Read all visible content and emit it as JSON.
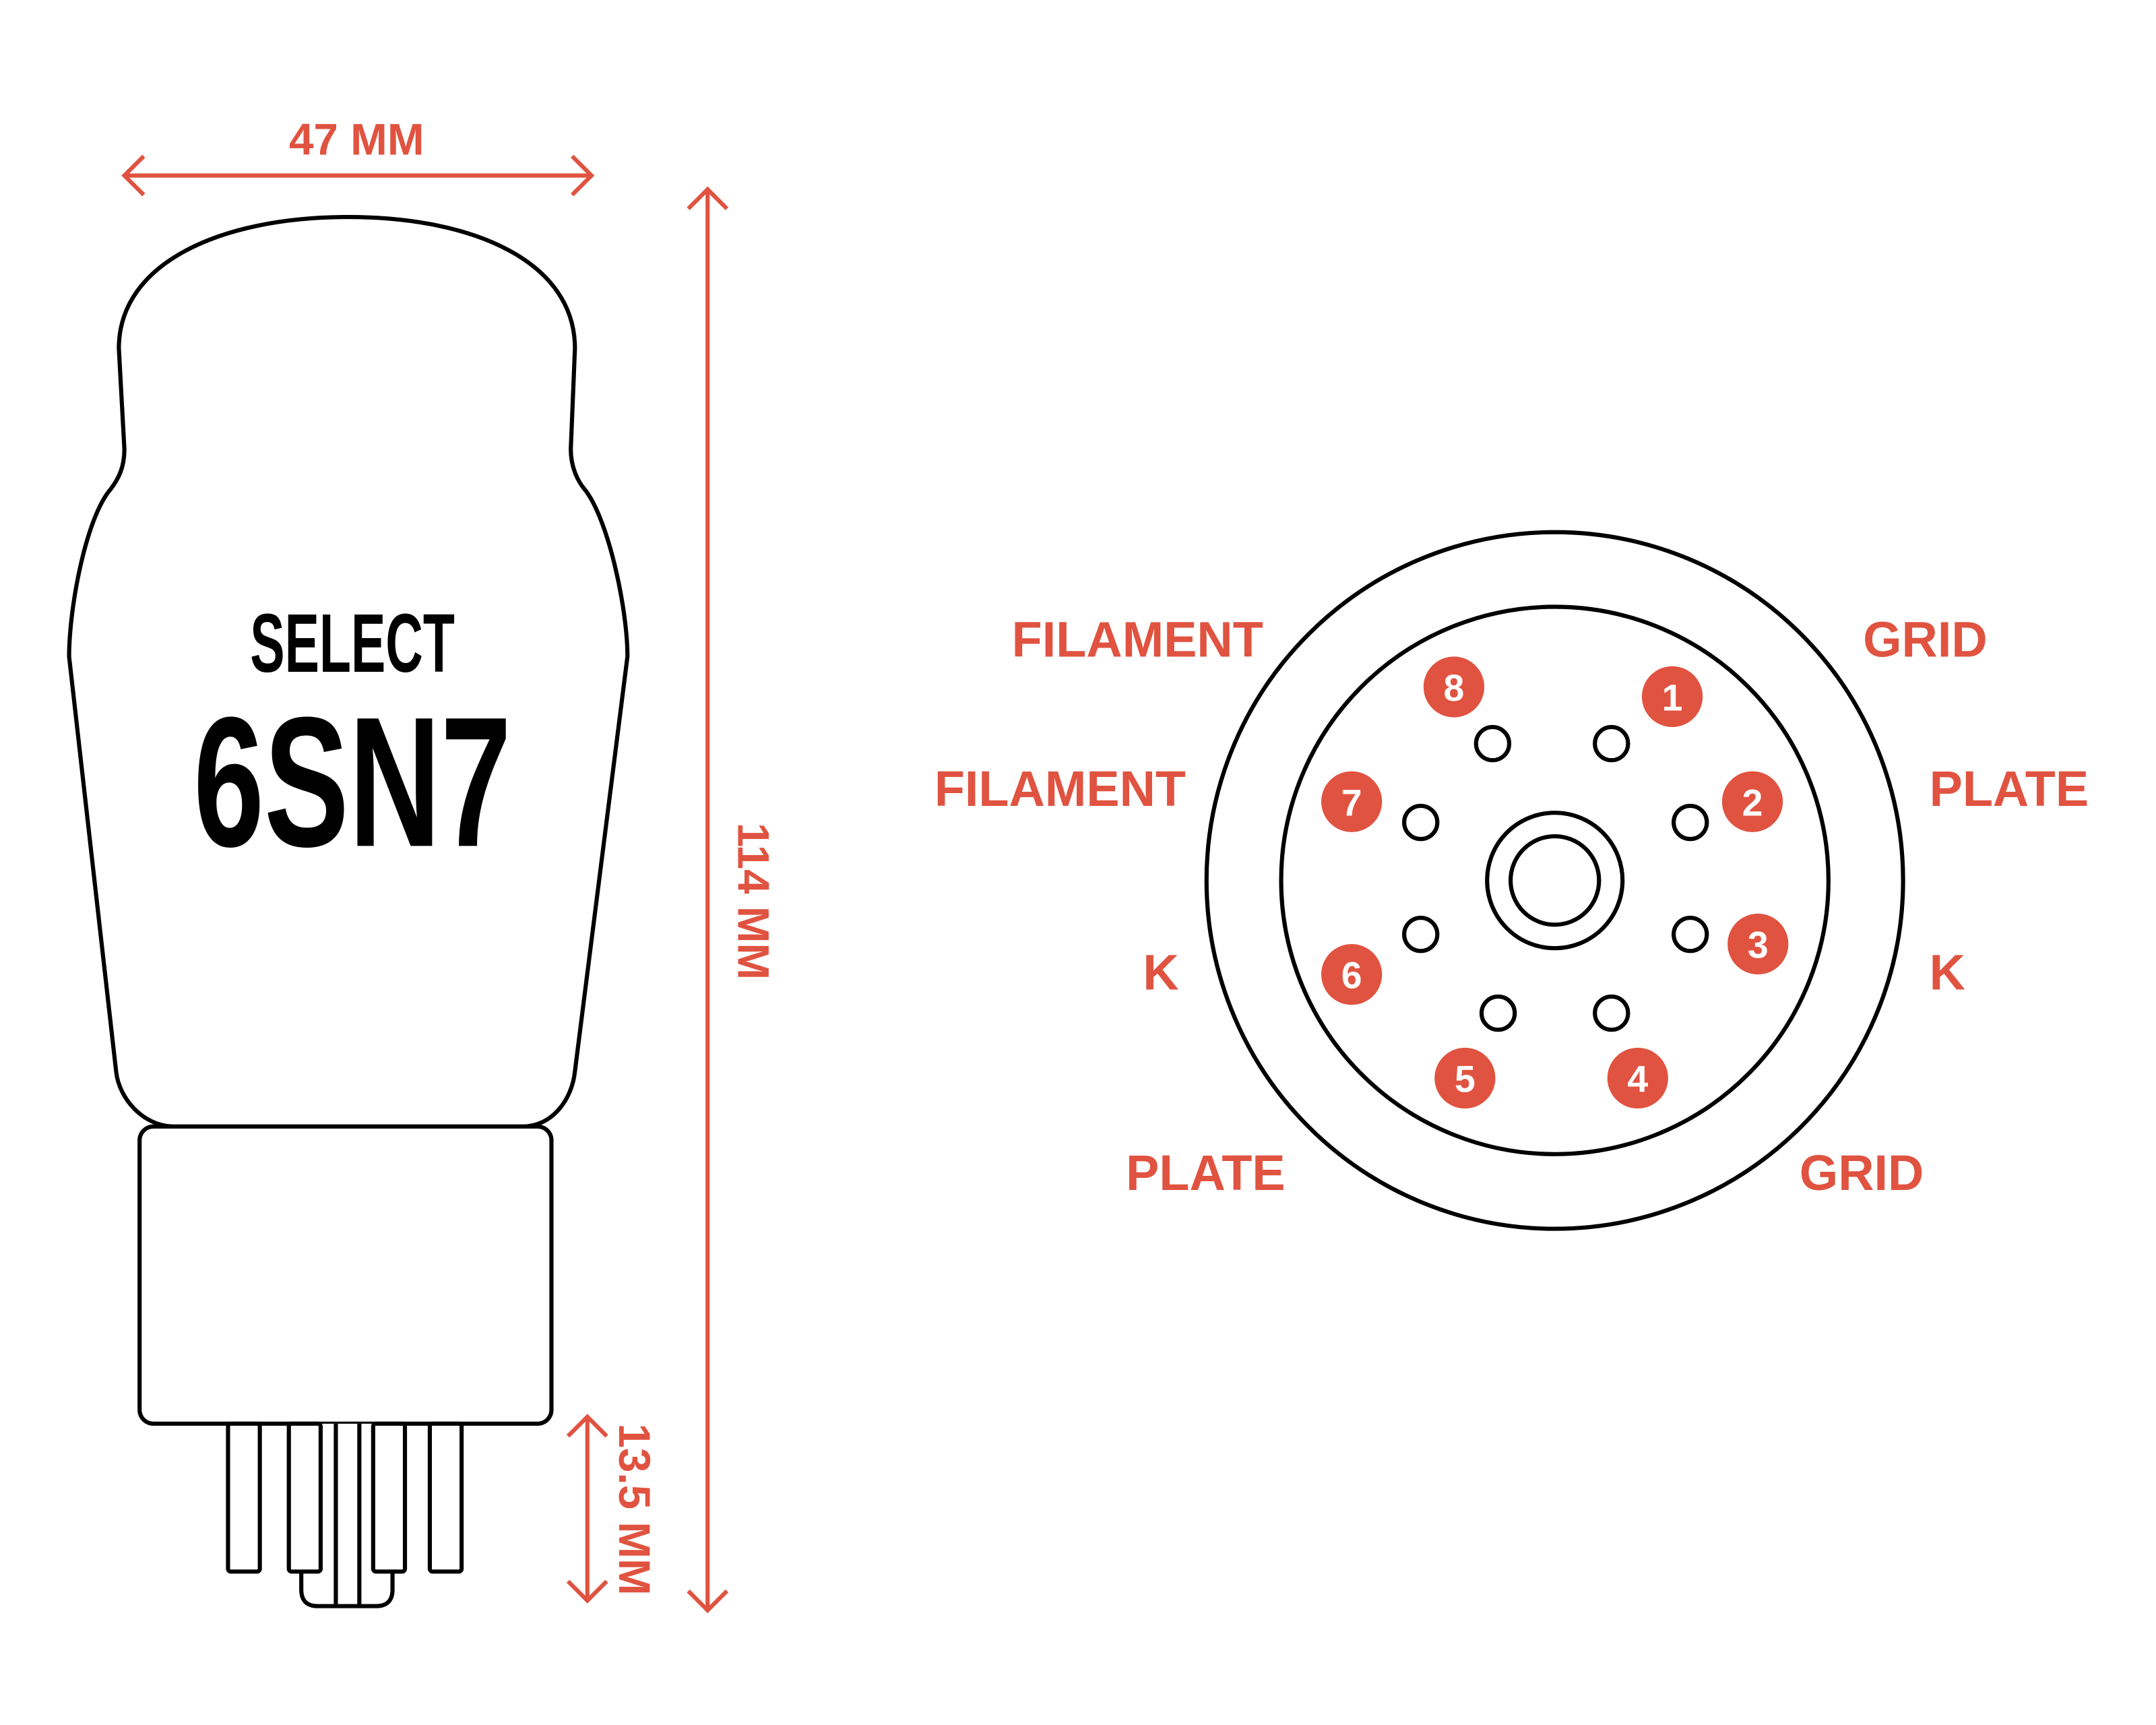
{
  "colors": {
    "accent": "#E05340",
    "line": "#000000",
    "background": "#FFFFFF"
  },
  "tube": {
    "brand": "SELECT",
    "model": "6SN7"
  },
  "dimensions": {
    "width": "47 MM",
    "height": "114 MM",
    "pin_length": "13.5 MM"
  },
  "socket": {
    "pin_numbers": [
      "1",
      "2",
      "3",
      "4",
      "5",
      "6",
      "7",
      "8"
    ],
    "labels_left": [
      "FILAMENT",
      "FILAMENT",
      "K",
      "PLATE"
    ],
    "labels_right": [
      "GRID",
      "PLATE",
      "K",
      "GRID"
    ]
  }
}
